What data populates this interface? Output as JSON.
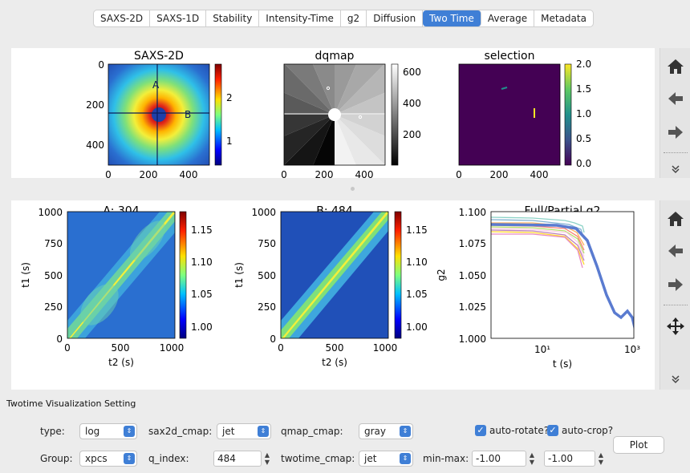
{
  "tabs": [
    {
      "label": "SAXS-2D",
      "active": false
    },
    {
      "label": "SAXS-1D",
      "active": false
    },
    {
      "label": "Stability",
      "active": false
    },
    {
      "label": "Intensity-Time",
      "active": false
    },
    {
      "label": "g2",
      "active": false
    },
    {
      "label": "Diffusion",
      "active": false
    },
    {
      "label": "Two Time",
      "active": true
    },
    {
      "label": "Average",
      "active": false
    },
    {
      "label": "Metadata",
      "active": false
    }
  ],
  "top_panel": {
    "saxs2d": {
      "title": "SAXS-2D",
      "yticks": [
        "0",
        "200",
        "400"
      ],
      "xticks": [
        "0",
        "200",
        "400"
      ],
      "cbar_ticks": [
        "2",
        "1"
      ],
      "labels": [
        "A",
        "B"
      ]
    },
    "dqmap": {
      "title": "dqmap",
      "xticks": [
        "0",
        "200",
        "400"
      ],
      "cbar_ticks": [
        "600",
        "400",
        "200"
      ]
    },
    "selection": {
      "title": "selection",
      "xticks": [
        "0",
        "200",
        "400"
      ],
      "cbar_ticks": [
        "2.0",
        "1.5",
        "1.0",
        "0.5",
        "0.0"
      ]
    }
  },
  "bottom_panel": {
    "twotime_a": {
      "title": "A: 304",
      "xlabel": "t2 (s)",
      "ylabel": "t1 (s)",
      "xticks": [
        "0",
        "500",
        "1000"
      ],
      "yticks": [
        "1000",
        "750",
        "500",
        "250",
        "0"
      ],
      "cbar_ticks": [
        "1.15",
        "1.10",
        "1.05",
        "1.00"
      ]
    },
    "twotime_b": {
      "title": "B: 484",
      "xlabel": "t2 (s)",
      "ylabel": "t1 (s)",
      "xticks": [
        "0",
        "500",
        "1000"
      ],
      "yticks": [
        "1000",
        "750",
        "500",
        "250",
        "0"
      ],
      "cbar_ticks": [
        "1.15",
        "1.10",
        "1.05",
        "1.00"
      ]
    },
    "g2": {
      "title": "Full/Partial g2",
      "xlabel": "t (s)",
      "ylabel": "g2",
      "yticks": [
        "1.100",
        "1.075",
        "1.050",
        "1.025",
        "1.000"
      ],
      "xticks": [
        "10¹",
        "10³"
      ]
    }
  },
  "colors": {
    "accent": "#3f7fd6",
    "jet_low": "#1f3fa8",
    "jet_high": "#d9332a",
    "viridis_low": "#440154",
    "viridis_high": "#fde725"
  },
  "icons": {
    "home": "home-icon",
    "back": "arrow-left-icon",
    "forward": "arrow-right-icon",
    "more": "double-chevron-down-icon",
    "pan": "move-arrows-icon"
  },
  "settings": {
    "title": "Twotime Visualization Setting",
    "type_label": "type:",
    "type_value": "log",
    "sax2d_cmap_label": "sax2d_cmap:",
    "sax2d_cmap_value": "jet",
    "qmap_cmap_label": "qmap_cmap:",
    "qmap_cmap_value": "gray",
    "auto_rotate_label": "auto-rotate?",
    "auto_crop_label": "auto-crop?",
    "group_label": "Group:",
    "group_value": "xpcs",
    "q_index_label": "q_index:",
    "q_index_value": "484",
    "twotime_cmap_label": "twotime_cmap:",
    "twotime_cmap_value": "jet",
    "minmax_label": "min-max:",
    "min_value": "-1.00",
    "max_value": "-1.00",
    "plot_label": "Plot"
  }
}
